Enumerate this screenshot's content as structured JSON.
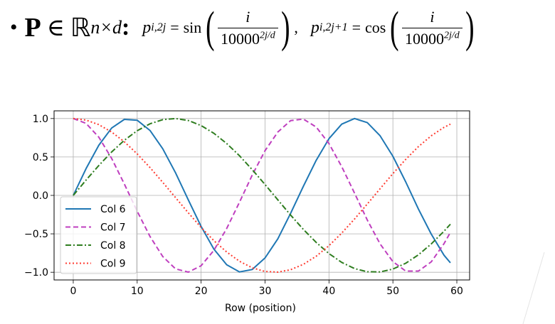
{
  "formula": {
    "bullet": "•",
    "P": "P",
    "in": "∈",
    "R": "ℝ",
    "dims": "n×d",
    "colon": ":",
    "p": "p",
    "sub_even": "i,2j",
    "sub_odd": "i,2j+1",
    "eq": "=",
    "sin": "sin",
    "cos": "cos",
    "numerator": "i",
    "base": "10000",
    "exponent": "2j/d",
    "comma": ","
  },
  "chart_data": {
    "type": "line",
    "title": "",
    "xlabel": "Row (position)",
    "ylabel": "",
    "xlim": [
      -3,
      62
    ],
    "ylim": [
      -1.1,
      1.1
    ],
    "grid": true,
    "legend_placement": "lower-left",
    "xticks": [
      0,
      10,
      20,
      30,
      40,
      50,
      60
    ],
    "xtick_labels": [
      "0",
      "10",
      "20",
      "30",
      "40",
      "50",
      "60"
    ],
    "yticks": [
      1.0,
      0.5,
      0.0,
      -0.5,
      -1.0
    ],
    "ytick_labels": [
      "1.0",
      "0.5",
      "0.0",
      "−0.5",
      "−1.0"
    ],
    "x": [
      0,
      2,
      4,
      6,
      8,
      10,
      12,
      14,
      16,
      18,
      20,
      22,
      24,
      26,
      28,
      30,
      32,
      34,
      36,
      38,
      40,
      42,
      44,
      46,
      48,
      50,
      52,
      54,
      56,
      58,
      59
    ],
    "series": [
      {
        "name": "Col 6",
        "color": "#1f77b4",
        "style": "solid",
        "values": [
          0,
          0.348,
          0.653,
          0.876,
          0.989,
          0.978,
          0.845,
          0.607,
          0.294,
          -0.059,
          -0.403,
          -0.699,
          -0.902,
          -0.996,
          -0.964,
          -0.813,
          -0.565,
          -0.234,
          0.119,
          0.457,
          0.738,
          0.927,
          1.0,
          0.947,
          0.776,
          0.508,
          0.176,
          -0.178,
          -0.504,
          -0.779,
          -0.877
        ]
      },
      {
        "name": "Col 7",
        "color": "#bf3fbf",
        "style": "dashed",
        "values": [
          1,
          0.937,
          0.757,
          0.482,
          0.147,
          -0.206,
          -0.534,
          -0.795,
          -0.956,
          -0.998,
          -0.915,
          -0.715,
          -0.431,
          -0.088,
          0.264,
          0.582,
          0.825,
          0.972,
          0.993,
          0.889,
          0.675,
          0.373,
          0.029,
          -0.321,
          -0.631,
          -0.862,
          -0.984,
          -0.984,
          -0.864,
          -0.627,
          -0.481
        ]
      },
      {
        "name": "Col 8",
        "color": "#2e7d1f",
        "style": "dashdot",
        "values": [
          0,
          0.199,
          0.389,
          0.565,
          0.717,
          0.841,
          0.932,
          0.985,
          1.0,
          0.974,
          0.909,
          0.808,
          0.675,
          0.516,
          0.335,
          0.141,
          -0.058,
          -0.256,
          -0.443,
          -0.612,
          -0.757,
          -0.872,
          -0.952,
          -0.994,
          -0.996,
          -0.959,
          -0.883,
          -0.773,
          -0.631,
          -0.465,
          -0.374
        ]
      },
      {
        "name": "Col 9",
        "color": "#ff3b30",
        "style": "dotted",
        "values": [
          1,
          0.98,
          0.921,
          0.825,
          0.697,
          0.54,
          0.362,
          0.17,
          -0.029,
          -0.227,
          -0.416,
          -0.589,
          -0.737,
          -0.857,
          -0.942,
          -0.99,
          -0.998,
          -0.967,
          -0.897,
          -0.791,
          -0.654,
          -0.49,
          -0.307,
          -0.112,
          0.087,
          0.284,
          0.469,
          0.635,
          0.776,
          0.886,
          0.927
        ]
      }
    ]
  }
}
